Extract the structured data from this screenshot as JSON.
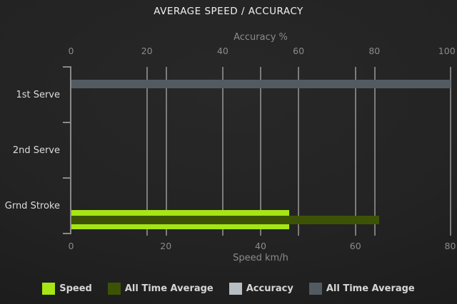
{
  "chart_data": {
    "type": "bar",
    "orientation": "horizontal",
    "title": "AVERAGE SPEED / ACCURACY",
    "categories": [
      "1st Serve",
      "2nd Serve",
      "Grnd Stroke"
    ],
    "axes": {
      "top": {
        "label": "Accuracy %",
        "min": 0,
        "max": 100,
        "ticks": [
          0,
          20,
          40,
          60,
          80,
          100
        ]
      },
      "bottom": {
        "label": "Speed km/h",
        "min": 0,
        "max": 80,
        "ticks": [
          0,
          20,
          40,
          60,
          80
        ]
      }
    },
    "series": [
      {
        "name": "Accuracy",
        "axis": "top",
        "role": "main",
        "color": "#b7bec4",
        "values": [
          0,
          0,
          0
        ]
      },
      {
        "name": "All Time Average",
        "axis": "top",
        "role": "average",
        "color": "#535b62",
        "values": [
          100,
          0,
          0
        ]
      },
      {
        "name": "Speed",
        "axis": "bottom",
        "role": "main",
        "color": "#a5e614",
        "values": [
          0,
          0,
          46
        ]
      },
      {
        "name": "All Time Average",
        "axis": "bottom",
        "role": "average",
        "color": "#3c5306",
        "values": [
          0,
          0,
          65
        ]
      }
    ],
    "grid": true,
    "legend": {
      "position": "bottom",
      "items": [
        {
          "label": "Speed",
          "color": "#a5e614"
        },
        {
          "label": "All Time Average",
          "color": "#3c5306"
        },
        {
          "label": "Accuracy",
          "color": "#b7bec4"
        },
        {
          "label": "All Time Average",
          "color": "#535b62"
        }
      ]
    }
  }
}
